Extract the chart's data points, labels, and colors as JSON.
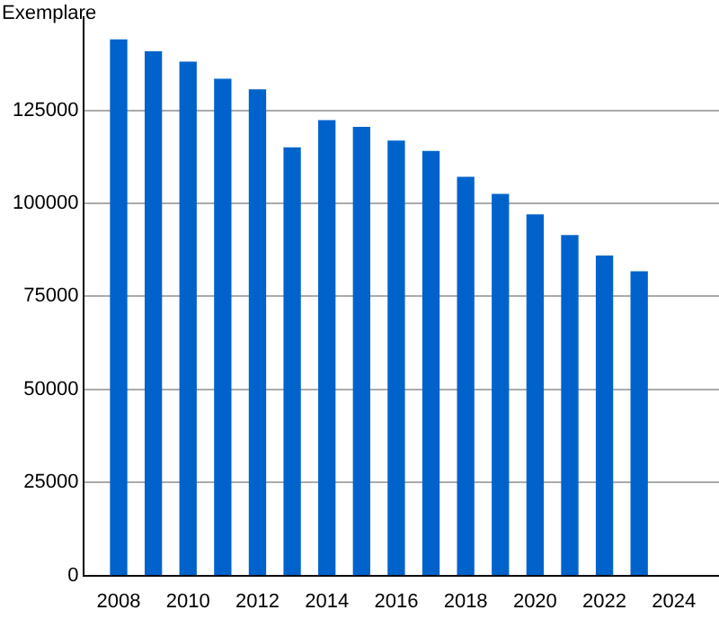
{
  "chart_data": {
    "type": "bar",
    "ylabel": "Exemplare",
    "x": [
      2008,
      2009,
      2010,
      2011,
      2012,
      2013,
      2014,
      2015,
      2016,
      2017,
      2018,
      2019,
      2020,
      2021,
      2022,
      2023
    ],
    "values": [
      143900,
      140700,
      137900,
      133300,
      130500,
      114900,
      122200,
      120400,
      116700,
      113900,
      107000,
      102400,
      96900,
      91300,
      85800,
      81600
    ],
    "color": "#0063cc",
    "xlim": [
      2007,
      2025.3
    ],
    "xticks": [
      2008,
      2010,
      2012,
      2014,
      2016,
      2018,
      2020,
      2022,
      2024
    ],
    "ylim": [
      0,
      150000
    ],
    "yticks": [
      0,
      25000,
      50000,
      75000,
      100000,
      125000
    ],
    "grid": "y",
    "legend": false
  }
}
